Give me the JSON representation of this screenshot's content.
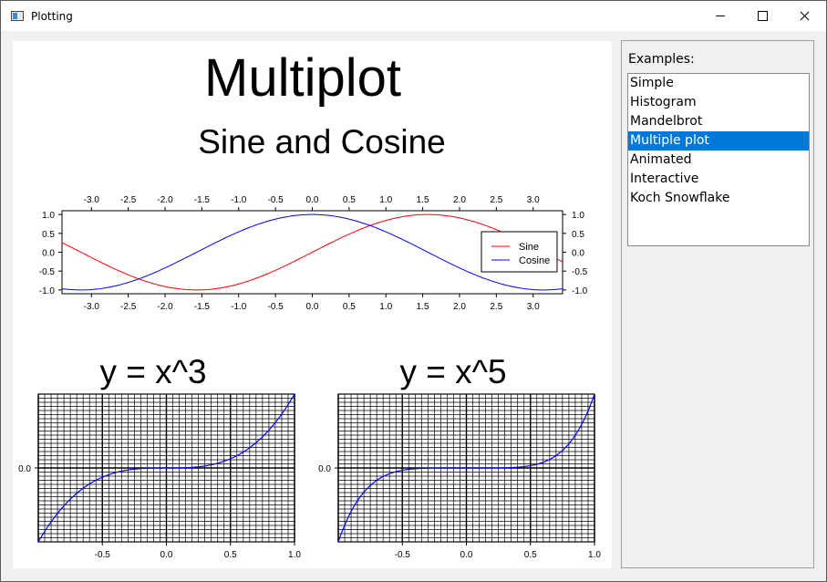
{
  "window": {
    "title": "Plotting",
    "icon": "plot-window-icon"
  },
  "canvas": {
    "title": "Multiplot"
  },
  "sidebar": {
    "label": "Examples:",
    "items": [
      {
        "label": "Simple"
      },
      {
        "label": "Histogram"
      },
      {
        "label": "Mandelbrot"
      },
      {
        "label": "Multiple plot"
      },
      {
        "label": "Animated"
      },
      {
        "label": "Interactive"
      },
      {
        "label": "Koch Snowflake"
      }
    ],
    "selected": "Multiple plot"
  },
  "colors": {
    "selection": "#0078d7",
    "sine": "#ff0000",
    "cosine": "#0000ff",
    "curve": "#0000ff"
  },
  "chart_data": [
    {
      "type": "line",
      "title": "Sine and Cosine",
      "xlim": [
        -3.4,
        3.4
      ],
      "ylim": [
        -1.1,
        1.1
      ],
      "xticks": [
        "-3.0",
        "-2.5",
        "-2.0",
        "-1.5",
        "-1.0",
        "-0.5",
        "0.0",
        "0.5",
        "1.0",
        "1.5",
        "2.0",
        "2.5",
        "3.0"
      ],
      "yticks": [
        "1.0",
        "0.5",
        "0.0",
        "-0.5",
        "-1.0"
      ],
      "legend_position": "right",
      "series": [
        {
          "name": "Sine",
          "function": "sin(x)",
          "color": "#ff0000"
        },
        {
          "name": "Cosine",
          "function": "cos(x)",
          "color": "#0000ff"
        }
      ],
      "grid": false
    },
    {
      "type": "line",
      "title": "y = x^3",
      "xlim": [
        -1.0,
        1.0
      ],
      "ylim": [
        -1.0,
        1.0
      ],
      "xticks": [
        "-0.5",
        "0.0",
        "0.5",
        "1.0"
      ],
      "yticks": [
        "0.0"
      ],
      "series": [
        {
          "function": "x^3",
          "color": "#0000ff"
        }
      ],
      "grid": true
    },
    {
      "type": "line",
      "title": "y = x^5",
      "xlim": [
        -1.0,
        1.0
      ],
      "ylim": [
        -1.0,
        1.0
      ],
      "xticks": [
        "-0.5",
        "0.0",
        "0.5",
        "1.0"
      ],
      "yticks": [
        "0.0"
      ],
      "series": [
        {
          "function": "x^5",
          "color": "#0000ff"
        }
      ],
      "grid": true
    }
  ]
}
